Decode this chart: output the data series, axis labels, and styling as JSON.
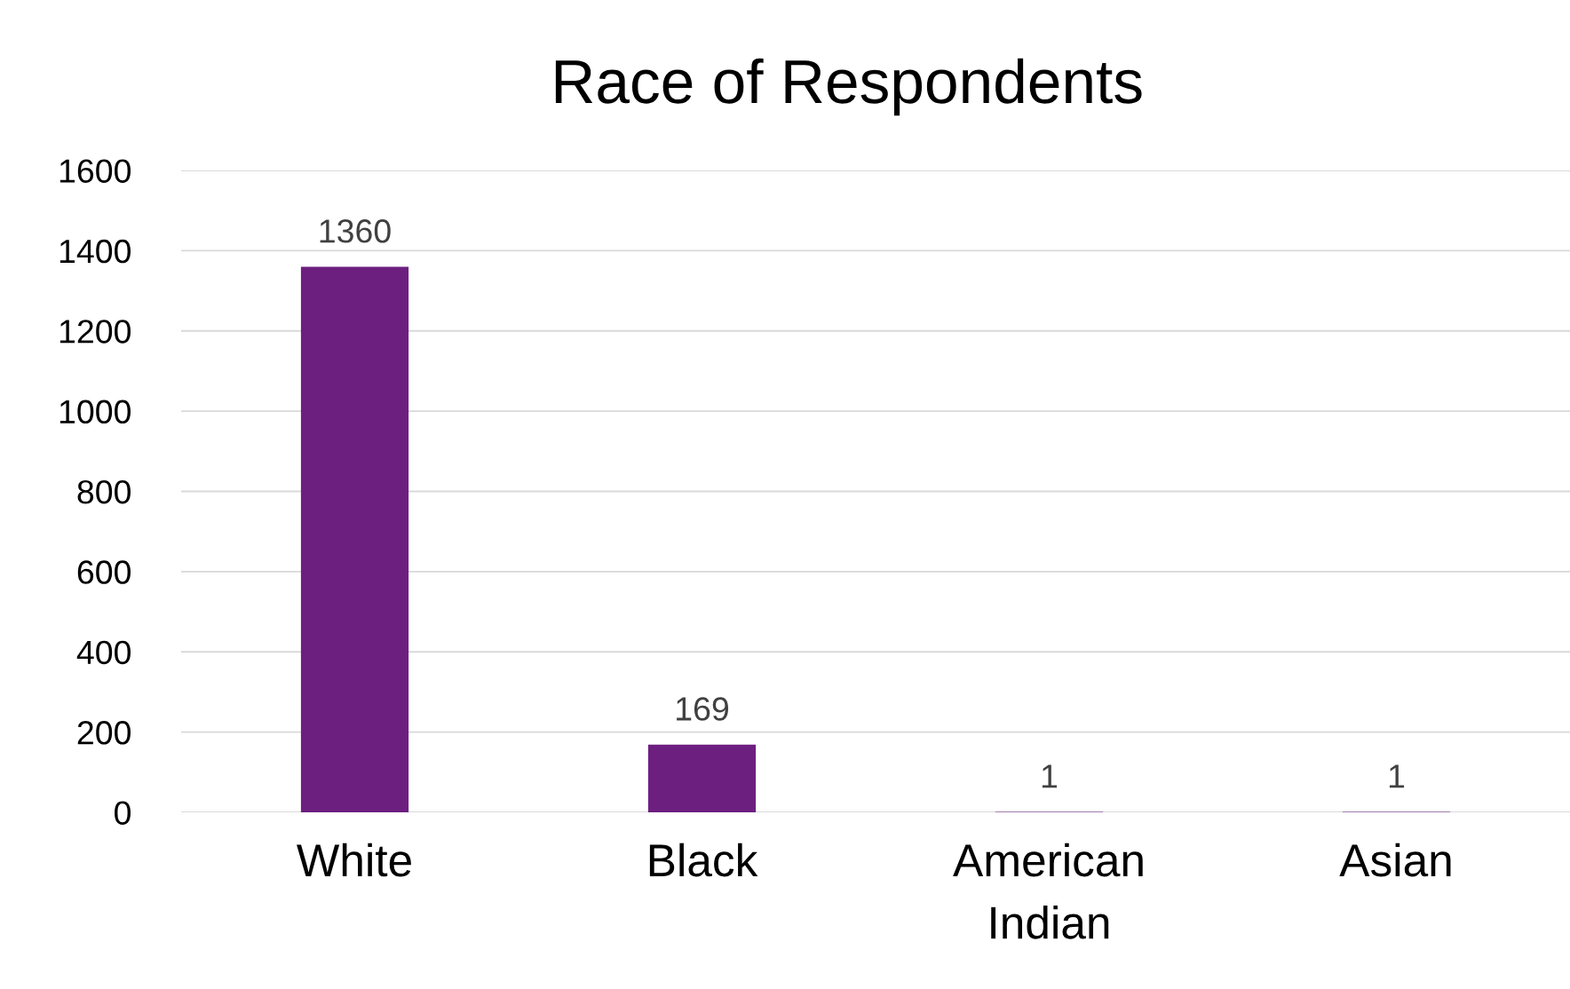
{
  "chart_data": {
    "type": "bar",
    "title": "Race of Respondents",
    "categories": [
      "White",
      "Black",
      "American\nIndian",
      "Asian"
    ],
    "values": [
      1360,
      169,
      1,
      1
    ],
    "color": "#6d1f80",
    "ylim": [
      0,
      1600
    ],
    "yticks": [
      0,
      200,
      400,
      600,
      800,
      1000,
      1200,
      1400,
      1600
    ],
    "grid": "y",
    "data_labels": true
  }
}
